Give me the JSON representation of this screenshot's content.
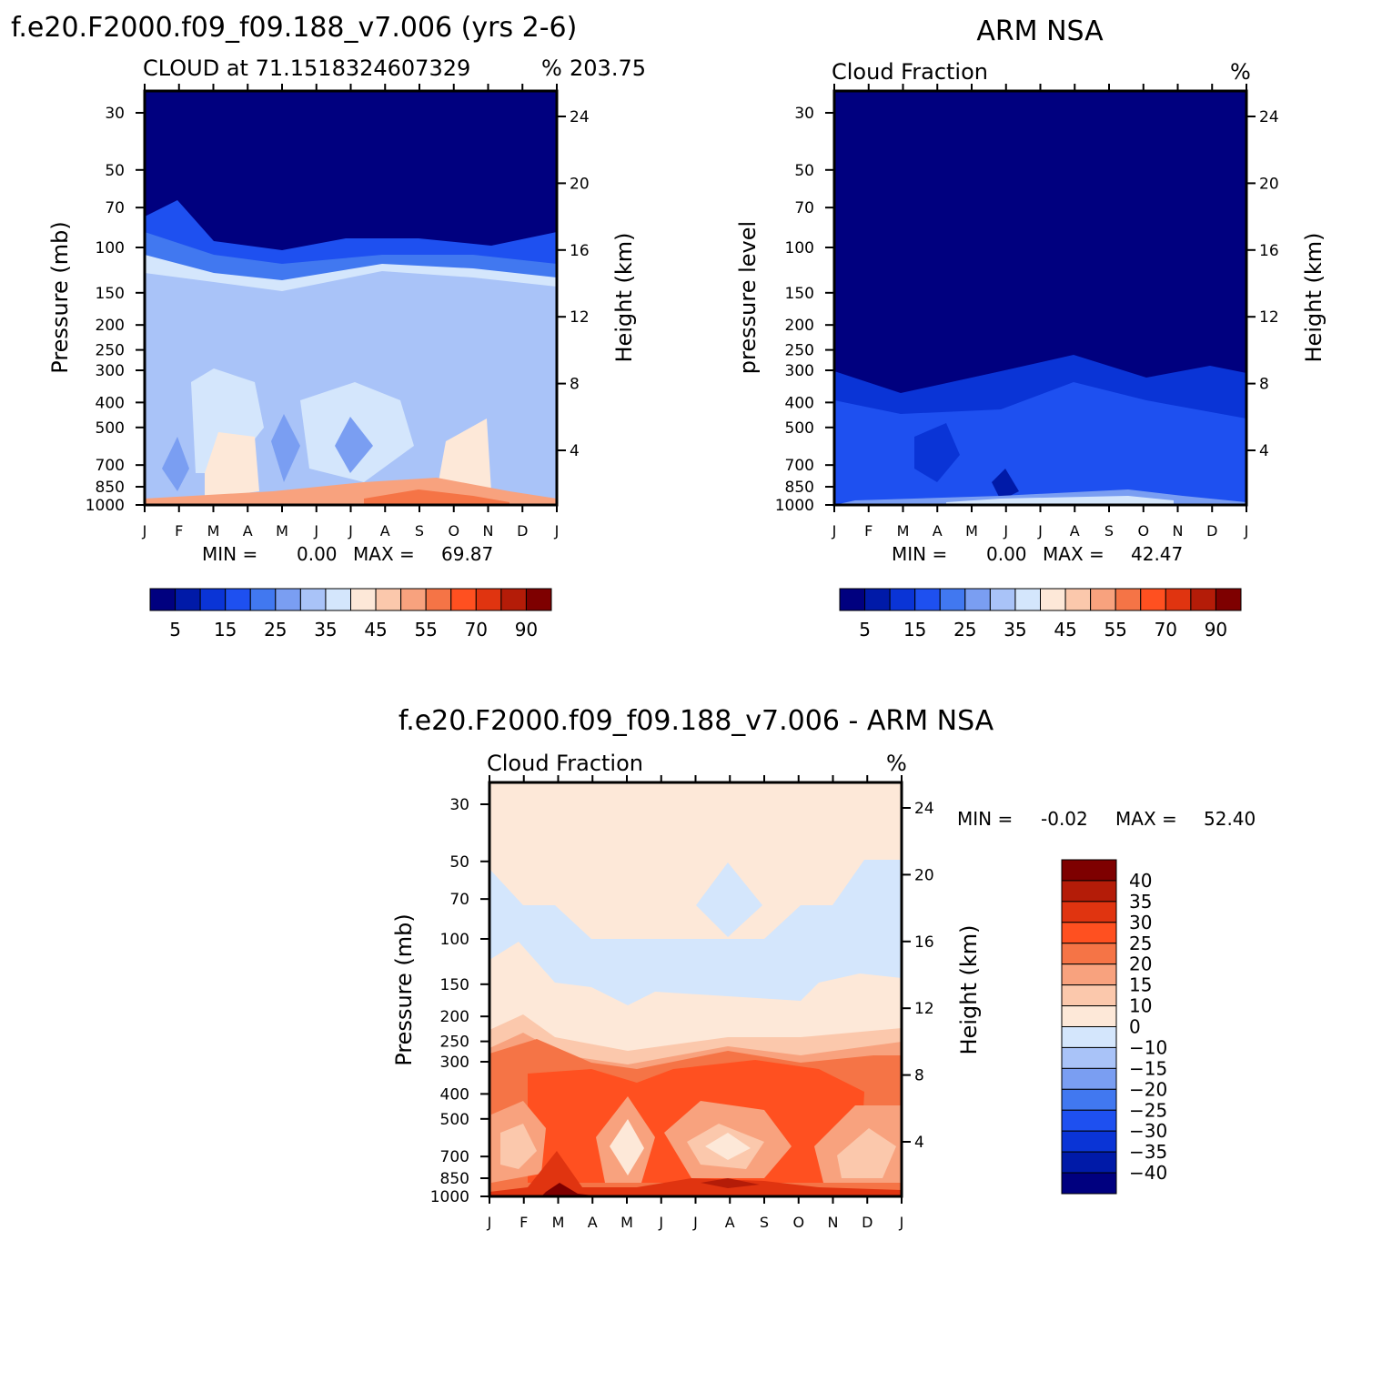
{
  "colors": {
    "panel_scale": [
      "#00007f",
      "#001aa8",
      "#0a34d6",
      "#1e50f0",
      "#4178f0",
      "#7a9ef2",
      "#a9c3f8",
      "#d4e6fc",
      "#fde8d8",
      "#fbc8ac",
      "#f8a27e",
      "#f57446",
      "#ff5020",
      "#e03410",
      "#b41c08",
      "#7e0000"
    ],
    "diff_scale": [
      "#00007f",
      "#001aa8",
      "#0a34d6",
      "#1e50f0",
      "#4178f0",
      "#7a9ef2",
      "#a9c3f8",
      "#d4e6fc",
      "#fde8d8",
      "#fbc8ac",
      "#f8a27e",
      "#f57446",
      "#ff5020",
      "#e03410",
      "#b41c08",
      "#7e0000"
    ]
  },
  "chart_data": [
    {
      "type": "heatmap",
      "title": "f.e20.F2000.f09_f09.188_v7.006 (yrs 2-6)",
      "subtitle_left": "CLOUD at 71.1518324607329",
      "subtitle_mid": "%",
      "subtitle_right": "203.75",
      "ylabel": "Pressure (mb)",
      "ylabel_right": "Height (km)",
      "x_ticks": [
        "J",
        "F",
        "M",
        "A",
        "M",
        "J",
        "J",
        "A",
        "S",
        "O",
        "N",
        "D",
        "J"
      ],
      "y_ticks": [
        "30",
        "50",
        "70",
        "100",
        "150",
        "200",
        "250",
        "300",
        "400",
        "500",
        "700",
        "850",
        "1000"
      ],
      "y_ticks_right": [
        "24",
        "20",
        "16",
        "12",
        "8",
        "4"
      ],
      "stats": {
        "min_label": "MIN =",
        "min": "0.00",
        "max_label": "MAX =",
        "max": "69.87"
      },
      "colorbar_labels": [
        "5",
        "15",
        "25",
        "35",
        "45",
        "55",
        "70",
        "90"
      ]
    },
    {
      "type": "heatmap",
      "title": "ARM NSA",
      "subtitle_left": "Cloud Fraction",
      "subtitle_right": "%",
      "ylabel": "pressure level",
      "ylabel_right": "Height (km)",
      "x_ticks": [
        "J",
        "F",
        "M",
        "A",
        "M",
        "J",
        "J",
        "A",
        "S",
        "O",
        "N",
        "D",
        "J"
      ],
      "y_ticks": [
        "30",
        "50",
        "70",
        "100",
        "150",
        "200",
        "250",
        "300",
        "400",
        "500",
        "700",
        "850",
        "1000"
      ],
      "y_ticks_right": [
        "24",
        "20",
        "16",
        "12",
        "8",
        "4"
      ],
      "stats": {
        "min_label": "MIN =",
        "min": "0.00",
        "max_label": "MAX =",
        "max": "42.47"
      },
      "colorbar_labels": [
        "5",
        "15",
        "25",
        "35",
        "45",
        "55",
        "70",
        "90"
      ]
    },
    {
      "type": "heatmap",
      "title": "f.e20.F2000.f09_f09.188_v7.006 - ARM NSA",
      "subtitle_left": "Cloud Fraction",
      "subtitle_right": "%",
      "ylabel": "Pressure (mb)",
      "ylabel_right": "Height (km)",
      "x_ticks": [
        "J",
        "F",
        "M",
        "A",
        "M",
        "J",
        "J",
        "A",
        "S",
        "O",
        "N",
        "D",
        "J"
      ],
      "y_ticks": [
        "30",
        "50",
        "70",
        "100",
        "150",
        "200",
        "250",
        "300",
        "400",
        "500",
        "700",
        "850",
        "1000"
      ],
      "y_ticks_right": [
        "24",
        "20",
        "16",
        "12",
        "8",
        "4"
      ],
      "stats": {
        "min_label": "MIN =",
        "min": "-0.02",
        "max_label": "MAX =",
        "max": "52.40"
      },
      "colorbar_labels": [
        "40",
        "35",
        "30",
        "25",
        "20",
        "15",
        "10",
        "0",
        "-10",
        "-15",
        "-20",
        "-25",
        "-30",
        "-35",
        "-40"
      ]
    }
  ]
}
